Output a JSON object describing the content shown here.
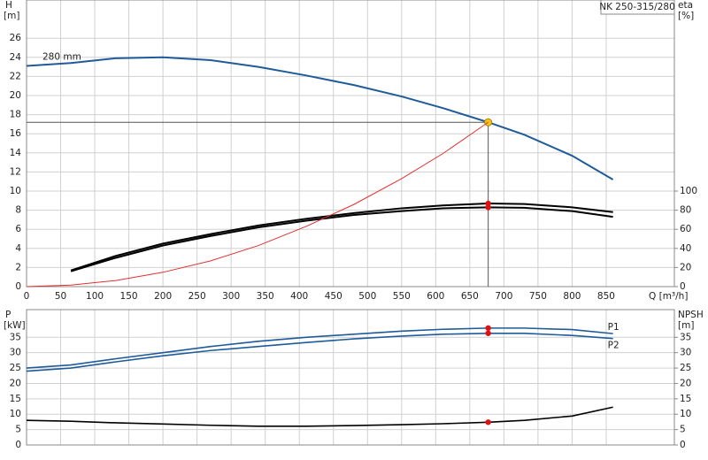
{
  "chart_data": [
    {
      "type": "line",
      "title": "NK 250-315/280",
      "ylabel": "H",
      "yunit": "[m]",
      "y2label": "eta",
      "y2unit": "[%]",
      "xlabel": "Q [m³/h]",
      "x": [
        0,
        65,
        130,
        200,
        270,
        340,
        410,
        480,
        550,
        610,
        677,
        730,
        800,
        860
      ],
      "series": [
        {
          "name": "280 mm",
          "color": "#1f5b9a",
          "marker_color": "#f5c518",
          "values": [
            23.1,
            23.4,
            23.9,
            24.0,
            23.7,
            23.0,
            22.1,
            21.1,
            19.9,
            18.7,
            17.2,
            15.9,
            13.7,
            11.2
          ]
        },
        {
          "color": "#000000",
          "axis": "y2",
          "marker_color": "#e01010",
          "values": [
            null,
            17,
            32,
            45,
            55,
            64,
            71,
            77,
            82,
            85,
            87,
            86.5,
            83,
            78
          ]
        },
        {
          "color": "#000000",
          "axis": "y2",
          "marker_color": "#e01010",
          "values": [
            null,
            16,
            30,
            43,
            53,
            62,
            69,
            75,
            79,
            82,
            83,
            82.5,
            79,
            73
          ]
        },
        {
          "color": "#e03030",
          "values": [
            0,
            0.16,
            0.63,
            1.5,
            2.7,
            4.3,
            6.3,
            8.6,
            11.3,
            13.9,
            17.2,
            null,
            null,
            null
          ]
        }
      ],
      "duty_x": 677,
      "xlim": [
        0,
        950
      ],
      "xticks": [
        0,
        50,
        100,
        150,
        200,
        250,
        300,
        350,
        400,
        450,
        500,
        550,
        600,
        650,
        700,
        750,
        800,
        850
      ],
      "xtick_labels": true,
      "ylim": [
        0,
        30
      ],
      "yticks": [
        0,
        2,
        4,
        6,
        8,
        10,
        12,
        14,
        16,
        18,
        20,
        22,
        24,
        26
      ],
      "y2lim": [
        0,
        300
      ],
      "y2ticks": [
        0,
        20,
        40,
        60,
        80,
        100
      ],
      "grid": true
    },
    {
      "type": "line",
      "ylabel": "P",
      "yunit": "[kW]",
      "y2label": "NPSH",
      "y2unit": "[m]",
      "x": [
        0,
        65,
        130,
        200,
        270,
        340,
        410,
        480,
        550,
        610,
        677,
        730,
        800,
        860
      ],
      "series": [
        {
          "name": "P1",
          "color": "#1f5b9a",
          "marker_color": "#e01010",
          "values": [
            25,
            26,
            28,
            30,
            32,
            33.7,
            35,
            36,
            37,
            37.6,
            38,
            38,
            37.5,
            36.2
          ]
        },
        {
          "name": "P2",
          "color": "#1f5b9a",
          "marker_color": "#e01010",
          "values": [
            24,
            25,
            27,
            29,
            30.7,
            32,
            33.3,
            34.5,
            35.4,
            36,
            36.3,
            36.3,
            35.6,
            34.6
          ]
        },
        {
          "color": "#000000",
          "axis": "y2",
          "marker_color": "#e01010",
          "values": [
            8,
            7.7,
            7.2,
            6.8,
            6.4,
            6.1,
            6.1,
            6.3,
            6.6,
            6.9,
            7.4,
            8.0,
            9.4,
            12.3
          ]
        }
      ],
      "duty_x": 677,
      "xlim": [
        0,
        950
      ],
      "xticks": [
        0,
        50,
        100,
        150,
        200,
        250,
        300,
        350,
        400,
        450,
        500,
        550,
        600,
        650,
        700,
        750,
        800,
        850
      ],
      "xtick_labels": false,
      "ylim": [
        0,
        44
      ],
      "yticks": [
        0,
        5,
        10,
        15,
        20,
        25,
        30,
        35
      ],
      "y2lim": [
        0,
        44
      ],
      "y2ticks": [
        0,
        5,
        10,
        15,
        20,
        25,
        30,
        35
      ],
      "grid": true
    }
  ]
}
